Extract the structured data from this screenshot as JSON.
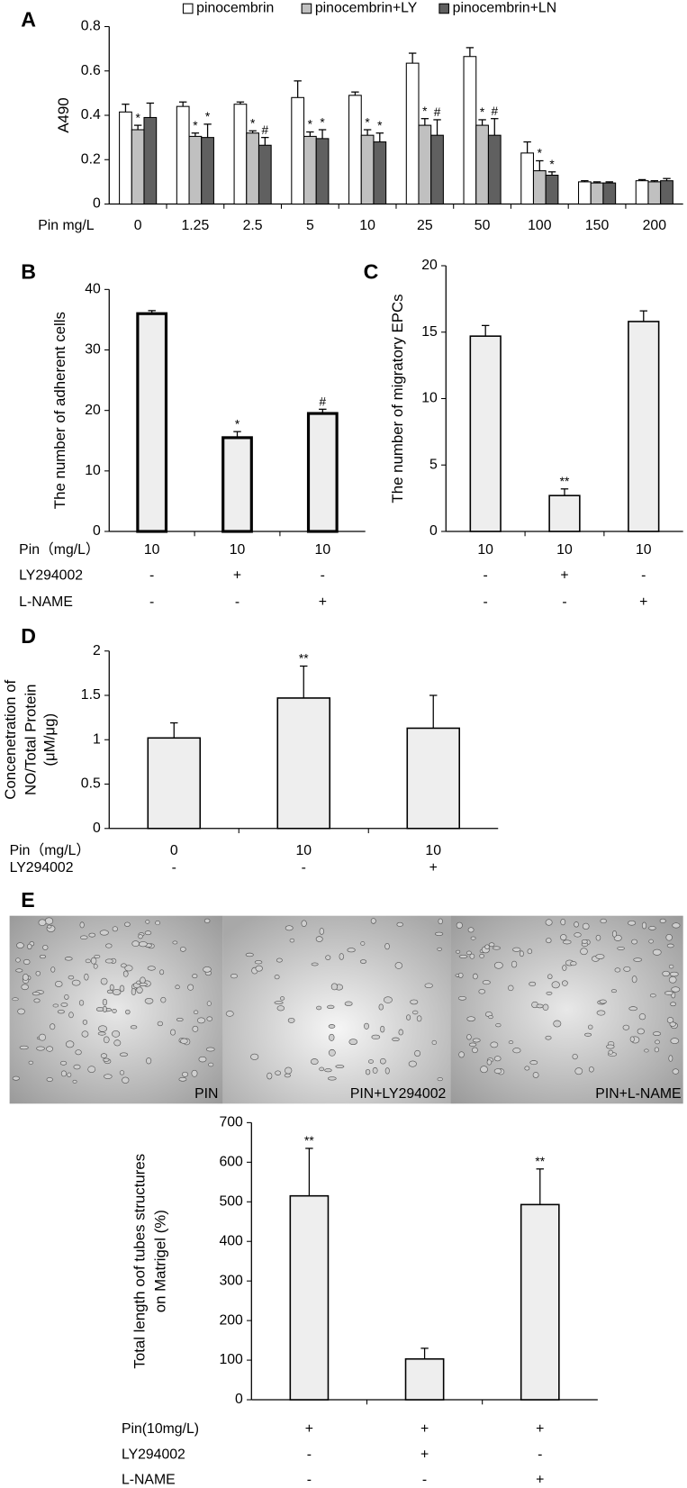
{
  "chart_data": [
    {
      "type": "bar",
      "panel": "A",
      "y_label": "A490",
      "x_label": "Pin mg/L",
      "categories": [
        "0",
        "1.25",
        "2.5",
        "5",
        "10",
        "25",
        "50",
        "100",
        "150",
        "200"
      ],
      "series": [
        {
          "name": "pinocembrin",
          "color": "#ffffff",
          "values": [
            0.415,
            0.44,
            0.45,
            0.48,
            0.49,
            0.635,
            0.665,
            0.23,
            0.1,
            0.105
          ],
          "errors": [
            0.035,
            0.02,
            0.01,
            0.075,
            0.015,
            0.045,
            0.04,
            0.05,
            0.005,
            0.005
          ]
        },
        {
          "name": "pinocembrin+LY",
          "color": "#c0c0c0",
          "values": [
            0.335,
            0.305,
            0.32,
            0.305,
            0.31,
            0.355,
            0.355,
            0.15,
            0.095,
            0.1
          ],
          "errors": [
            0.02,
            0.015,
            0.01,
            0.02,
            0.025,
            0.03,
            0.025,
            0.045,
            0.005,
            0.005
          ],
          "marks": [
            "*",
            "*",
            "*",
            "*",
            "*",
            "*",
            "*",
            "*",
            null,
            null
          ]
        },
        {
          "name": "pinocembrin+LN",
          "color": "#606060",
          "values": [
            0.39,
            0.3,
            0.265,
            0.295,
            0.28,
            0.31,
            0.31,
            0.13,
            0.095,
            0.105
          ],
          "errors": [
            0.065,
            0.06,
            0.035,
            0.04,
            0.04,
            0.07,
            0.075,
            0.015,
            0.005,
            0.01
          ],
          "marks": [
            null,
            "*",
            "#",
            "*",
            "*",
            "#",
            "#",
            "*",
            null,
            null
          ]
        }
      ],
      "ylim": [
        0,
        0.8
      ],
      "yticks": [
        0,
        0.2,
        0.4,
        0.6,
        0.8
      ],
      "legend": "top"
    },
    {
      "type": "bar",
      "panel": "B",
      "y_label": "The number of adherent cells",
      "x_label": "Pin（mg/L）",
      "categories": [
        "10",
        "10",
        "10"
      ],
      "extra_rows": [
        {
          "label": "LY294002",
          "values": [
            "-",
            "+",
            "-"
          ]
        },
        {
          "label": "L-NAME",
          "values": [
            "-",
            "-",
            "+"
          ]
        }
      ],
      "values": [
        36,
        15.5,
        19.5
      ],
      "errors": [
        0.5,
        1,
        0.7
      ],
      "marks": [
        null,
        "*",
        "#"
      ],
      "color": "#eeeeee",
      "ylim": [
        0,
        40
      ],
      "yticks": [
        0,
        10,
        20,
        30,
        40
      ]
    },
    {
      "type": "bar",
      "panel": "C",
      "y_label": "The number of migratory EPCs",
      "categories": [
        "10",
        "10",
        "10"
      ],
      "extra_rows": [
        {
          "values": [
            "-",
            "+",
            "-"
          ]
        },
        {
          "values": [
            "-",
            "-",
            "+"
          ]
        }
      ],
      "values": [
        14.7,
        2.7,
        15.8
      ],
      "errors": [
        0.8,
        0.5,
        0.8
      ],
      "marks": [
        null,
        "**",
        null
      ],
      "color": "#eeeeee",
      "ylim": [
        0,
        20
      ],
      "yticks": [
        0,
        5,
        10,
        15,
        20
      ]
    },
    {
      "type": "bar",
      "panel": "D",
      "y_label": [
        "Concenetration of",
        "NO/Total Protein",
        "(μM/μg)"
      ],
      "x_label": "Pin（mg/L）",
      "categories": [
        "0",
        "10",
        "10"
      ],
      "extra_rows": [
        {
          "label": "LY294002",
          "values": [
            "-",
            "-",
            "+"
          ]
        }
      ],
      "values": [
        1.02,
        1.47,
        1.13
      ],
      "errors": [
        0.17,
        0.36,
        0.37
      ],
      "marks": [
        null,
        "**",
        null
      ],
      "color": "#eeeeee",
      "ylim": [
        0,
        2
      ],
      "yticks": [
        0,
        0.5,
        1,
        1.5,
        2
      ]
    },
    {
      "type": "bar",
      "panel": "E",
      "y_label": [
        "Total length oof tubes structures",
        "on Matrigel (%)"
      ],
      "x_label": "Pin(10mg/L)",
      "categories": [
        "+",
        "+",
        "+"
      ],
      "extra_rows": [
        {
          "label": "LY294002",
          "values": [
            "-",
            "+",
            "-"
          ]
        },
        {
          "label": "L-NAME",
          "values": [
            "-",
            "-",
            "+"
          ]
        }
      ],
      "values": [
        515,
        103,
        493
      ],
      "errors": [
        120,
        27,
        90
      ],
      "marks": [
        "**",
        null,
        "**"
      ],
      "color": "#eeeeee",
      "ylim": [
        0,
        700
      ],
      "yticks": [
        0,
        100,
        200,
        300,
        400,
        500,
        600,
        700
      ]
    }
  ],
  "micrographs": {
    "labels": [
      "PIN",
      "PIN+LY294002",
      "PIN+L-NAME"
    ]
  }
}
